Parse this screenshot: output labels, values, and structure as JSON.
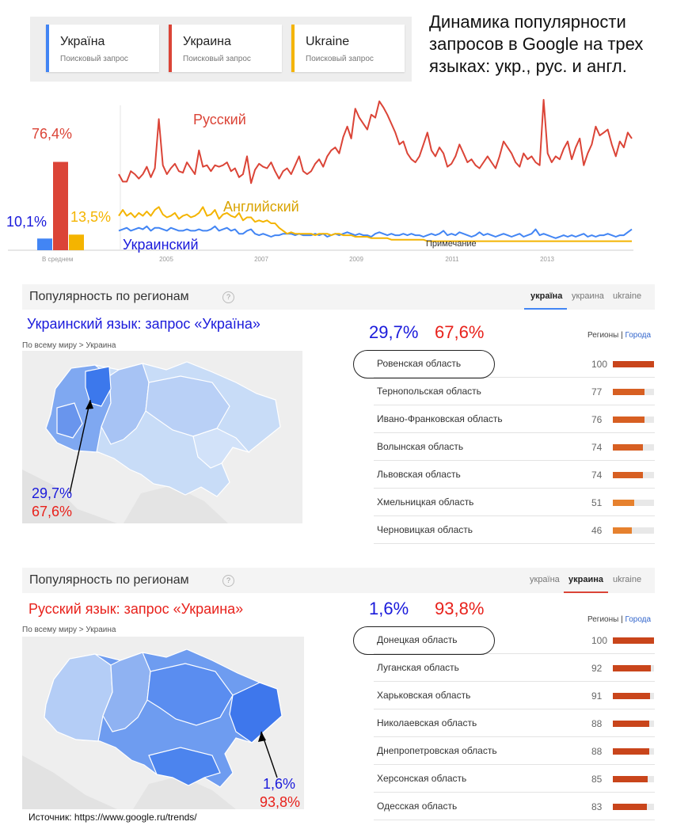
{
  "terms": [
    {
      "name": "Україна",
      "sub": "Поисковый запрос",
      "color": "#4285f4"
    },
    {
      "name": "Украина",
      "sub": "Поисковый запрос",
      "color": "#db4437"
    },
    {
      "name": "Ukraine",
      "sub": "Поисковый запрос",
      "color": "#f4b400"
    }
  ],
  "headline": "Динамика популярности запросов в Google на трех языках: укр., рус. и англ.",
  "chart_data": [
    {
      "type": "bar",
      "title": "",
      "categories": [
        "Україна",
        "Украина",
        "Ukraine"
      ],
      "values": [
        10.1,
        76.4,
        13.5
      ],
      "value_labels": [
        "10,1%",
        "76,4%",
        "13,5%"
      ],
      "colors": [
        "#4285f4",
        "#db4437",
        "#f4b400"
      ],
      "xlabel": "В среднем",
      "ylim": [
        0,
        100
      ]
    },
    {
      "type": "line",
      "title": "",
      "x_ticks": [
        "2005",
        "2007",
        "2009",
        "2011",
        "2013"
      ],
      "ylim": [
        0,
        100
      ],
      "annotation": "Примечание",
      "series": [
        {
          "name": "Русский",
          "color": "#db4437",
          "values": [
            50,
            45,
            45,
            52,
            50,
            47,
            50,
            55,
            48,
            54,
            87,
            56,
            50,
            54,
            57,
            52,
            51,
            58,
            54,
            50,
            66,
            55,
            56,
            52,
            56,
            55,
            56,
            58,
            52,
            54,
            48,
            50,
            62,
            44,
            53,
            57,
            55,
            54,
            58,
            52,
            47,
            52,
            54,
            50,
            56,
            62,
            52,
            50,
            52,
            57,
            60,
            55,
            62,
            66,
            68,
            64,
            75,
            82,
            74,
            94,
            88,
            84,
            80,
            90,
            88,
            99,
            95,
            90,
            84,
            78,
            70,
            72,
            64,
            60,
            58,
            62,
            70,
            78,
            66,
            62,
            68,
            64,
            55,
            57,
            62,
            70,
            64,
            58,
            60,
            56,
            54,
            58,
            62,
            58,
            54,
            62,
            72,
            68,
            64,
            58,
            55,
            64,
            60,
            62,
            58,
            56,
            100,
            64,
            58,
            62,
            60,
            67,
            72,
            60,
            68,
            74,
            56,
            64,
            70,
            82,
            76,
            78,
            80,
            70,
            62,
            72,
            68,
            78,
            74
          ]
        },
        {
          "name": "Английский",
          "color": "#f4b400",
          "values": [
            22,
            26,
            22,
            24,
            21,
            24,
            22,
            25,
            22,
            26,
            28,
            23,
            21,
            22,
            24,
            20,
            22,
            23,
            21,
            22,
            24,
            28,
            22,
            23,
            26,
            20,
            23,
            24,
            22,
            21,
            24,
            19,
            21,
            21,
            18,
            19,
            18,
            19,
            17,
            17,
            14,
            12,
            10,
            11,
            10,
            10,
            10,
            10,
            10,
            9,
            10,
            10,
            10,
            9,
            10,
            10,
            9,
            9,
            9,
            8,
            8,
            8,
            8,
            7,
            7,
            7,
            7,
            7,
            6,
            6,
            6,
            6,
            6,
            6,
            6,
            6,
            6,
            5,
            5,
            5,
            5,
            5,
            5,
            5,
            5,
            5,
            5,
            5,
            5,
            5,
            5,
            5,
            5,
            5,
            5,
            5,
            5,
            5,
            5,
            5,
            5,
            5,
            5,
            5,
            5,
            5,
            5,
            5,
            5,
            5,
            5,
            5,
            5,
            5,
            5,
            5,
            5,
            5,
            5,
            5,
            5,
            5,
            5,
            5,
            5,
            5,
            5,
            5,
            5
          ]
        },
        {
          "name": "Украинский",
          "color": "#4285f4",
          "values": [
            12,
            13,
            14,
            12,
            13,
            14,
            13,
            15,
            12,
            14,
            14,
            13,
            12,
            14,
            13,
            12,
            12,
            13,
            12,
            12,
            13,
            12,
            12,
            13,
            15,
            12,
            13,
            14,
            12,
            13,
            10,
            10,
            12,
            13,
            10,
            9,
            10,
            9,
            8,
            9,
            9,
            10,
            10,
            10,
            9,
            10,
            9,
            9,
            9,
            10,
            9,
            10,
            8,
            9,
            10,
            9,
            10,
            11,
            10,
            9,
            10,
            9,
            9,
            8,
            10,
            11,
            10,
            9,
            10,
            9,
            9,
            10,
            9,
            10,
            9,
            9,
            8,
            9,
            10,
            9,
            10,
            12,
            9,
            10,
            9,
            11,
            10,
            9,
            8,
            9,
            11,
            9,
            10,
            9,
            8,
            9,
            10,
            9,
            8,
            9,
            10,
            8,
            9,
            10,
            13,
            9,
            10,
            9,
            8,
            7,
            8,
            9,
            8,
            9,
            8,
            9,
            10,
            8,
            9,
            8,
            9,
            9,
            10,
            9,
            8,
            9,
            9,
            11,
            13
          ]
        }
      ]
    }
  ],
  "bar_labels": {
    "ukr": "10,1%",
    "rus": "76,4%",
    "eng": "13,5%"
  },
  "avg_label": "В среднем",
  "x_ticks": [
    "2005",
    "2007",
    "2009",
    "2011",
    "2013"
  ],
  "series_labels": {
    "rus": "Русский",
    "eng": "Английский",
    "ukr": "Украинский"
  },
  "note_label": "Примечание",
  "panel1": {
    "title": "Популярность по регионам",
    "help": "?",
    "tabs": [
      "україна",
      "украина",
      "ukraine"
    ],
    "active_tab": 0,
    "accent": "#4285f4",
    "subtitle": "Украинский язык: запрос «Україна»",
    "subtitle_color": "#1a1adb",
    "crumb": "По всему миру > Украина",
    "pct_blue": "29,7%",
    "pct_red": "67,6%",
    "map_pct_blue": "29,7%",
    "map_pct_red": "67,6%",
    "regions_label": "Регионы",
    "sep": "|",
    "cities_label": "Города",
    "rows": [
      {
        "name": "Ровенская область",
        "value": "100",
        "pct": 100,
        "color": "#c9451b"
      },
      {
        "name": "Тернопольская область",
        "value": "77",
        "pct": 77,
        "color": "#d75f22"
      },
      {
        "name": "Ивано-Франковская область",
        "value": "76",
        "pct": 76,
        "color": "#d75f22"
      },
      {
        "name": "Волынская область",
        "value": "74",
        "pct": 74,
        "color": "#d75f22"
      },
      {
        "name": "Львовская область",
        "value": "74",
        "pct": 74,
        "color": "#d75f22"
      },
      {
        "name": "Хмельницкая область",
        "value": "51",
        "pct": 51,
        "color": "#e6812e"
      },
      {
        "name": "Черновицкая область",
        "value": "46",
        "pct": 46,
        "color": "#e6812e"
      }
    ]
  },
  "panel2": {
    "title": "Популярность по регионам",
    "help": "?",
    "tabs": [
      "україна",
      "украина",
      "ukraine"
    ],
    "active_tab": 1,
    "accent": "#db4437",
    "subtitle": "Русский язык: запрос «Украина»",
    "subtitle_color": "#e8221c",
    "crumb": "По всему миру > Украина",
    "pct_blue": "1,6%",
    "pct_red": "93,8%",
    "map_pct_blue": "1,6%",
    "map_pct_red": "93,8%",
    "regions_label": "Регионы",
    "sep": "|",
    "cities_label": "Города",
    "rows": [
      {
        "name": "Донецкая область",
        "value": "100",
        "pct": 100,
        "color": "#c9451b"
      },
      {
        "name": "Луганская область",
        "value": "92",
        "pct": 92,
        "color": "#c9451b"
      },
      {
        "name": "Харьковская область",
        "value": "91",
        "pct": 91,
        "color": "#c9451b"
      },
      {
        "name": "Николаевская область",
        "value": "88",
        "pct": 88,
        "color": "#c9451b"
      },
      {
        "name": "Днепропетровская область",
        "value": "88",
        "pct": 88,
        "color": "#c9451b"
      },
      {
        "name": "Херсонская область",
        "value": "85",
        "pct": 85,
        "color": "#c9451b"
      },
      {
        "name": "Одесская область",
        "value": "83",
        "pct": 83,
        "color": "#c9451b"
      }
    ]
  },
  "source": "Источник: https://www.google.ru/trends/"
}
